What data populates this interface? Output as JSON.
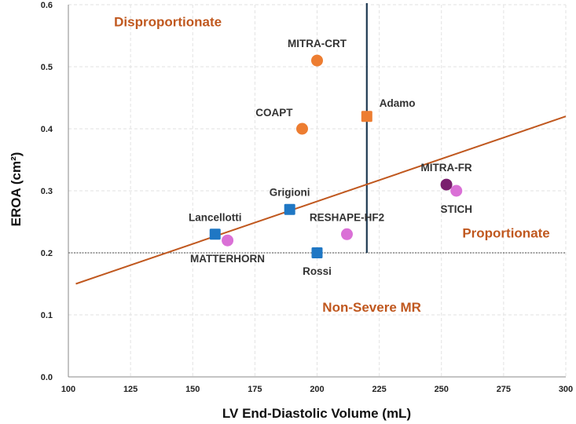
{
  "chart_data": {
    "type": "scatter",
    "title": "",
    "xlabel": "LV End-Diastolic Volume (mL)",
    "ylabel": "EROA (cm²)",
    "xlim": [
      100,
      300
    ],
    "ylim": [
      0.0,
      0.6
    ],
    "xticks": [
      100,
      125,
      150,
      175,
      200,
      225,
      250,
      275,
      300
    ],
    "xtick_labels": [
      "100",
      "125",
      "150",
      "175",
      "200",
      "225",
      "250",
      "275",
      "300"
    ],
    "yticks": [
      0.0,
      0.1,
      0.2,
      0.3,
      0.4,
      0.5,
      0.6
    ],
    "ytick_labels": [
      "0.0",
      "0.1",
      "0.2",
      "0.3",
      "0.4",
      "0.5",
      "0.6"
    ],
    "grid": true,
    "points": [
      {
        "name": "MITRA-CRT",
        "x": 200,
        "y": 0.51,
        "shape": "circle",
        "color": "#ED7D31",
        "label_pos": "above"
      },
      {
        "name": "Adamo",
        "x": 220,
        "y": 0.42,
        "shape": "square",
        "color": "#ED7D31",
        "label_pos": "right-up"
      },
      {
        "name": "COAPT",
        "x": 194,
        "y": 0.4,
        "shape": "circle",
        "color": "#ED7D31",
        "label_pos": "left-up"
      },
      {
        "name": "MITRA-FR",
        "x": 252,
        "y": 0.31,
        "shape": "circle",
        "color": "#7A1F6E",
        "label_pos": "above"
      },
      {
        "name": "STICH",
        "x": 256,
        "y": 0.3,
        "shape": "circle",
        "color": "#DA70D6",
        "label_pos": "below"
      },
      {
        "name": "Grigioni",
        "x": 189,
        "y": 0.27,
        "shape": "square",
        "color": "#1F77C4",
        "label_pos": "above"
      },
      {
        "name": "Lancellotti",
        "x": 159,
        "y": 0.23,
        "shape": "square",
        "color": "#1F77C4",
        "label_pos": "above"
      },
      {
        "name": "MATTERHORN",
        "x": 164,
        "y": 0.22,
        "shape": "circle",
        "color": "#DA70D6",
        "label_pos": "below"
      },
      {
        "name": "RESHAPE-HF2",
        "x": 212,
        "y": 0.23,
        "shape": "circle",
        "color": "#DA70D6",
        "label_pos": "above"
      },
      {
        "name": "Rossi",
        "x": 200,
        "y": 0.2,
        "shape": "square",
        "color": "#1F77C4",
        "label_pos": "below"
      }
    ],
    "trend_line": {
      "x": [
        103,
        300
      ],
      "y": [
        0.15,
        0.42
      ],
      "color": "#C0581F"
    },
    "vertical_line": {
      "x": 220,
      "color": "#1F3A52"
    },
    "horizontal_line": {
      "y": 0.2,
      "color": "#444444"
    },
    "regions": [
      {
        "label": "Disproportionate",
        "x": 140,
        "y": 0.565,
        "color": "#C0581F"
      },
      {
        "label": "Proportionate",
        "x": 276,
        "y": 0.225,
        "color": "#C0581F"
      },
      {
        "label": "Non-Severe MR",
        "x": 222,
        "y": 0.105,
        "color": "#C0581F"
      }
    ]
  }
}
